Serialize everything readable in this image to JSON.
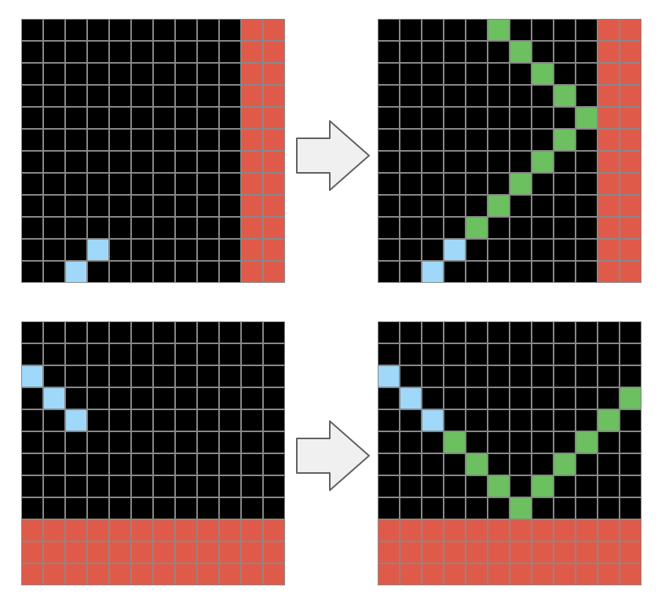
{
  "colors": {
    "background": "#000000",
    "gridline": "#888888",
    "wall": "#e05a4a",
    "start": "#9fd8f8",
    "path": "#6cc060",
    "arrow_fill": "#f0f0f0",
    "arrow_stroke": "#606060"
  },
  "examples": [
    {
      "input": {
        "rows": 12,
        "cols": 12,
        "wall": {
          "side": "right",
          "thickness": 2
        },
        "cells": [
          {
            "r": 10,
            "c": 3,
            "color": "start"
          },
          {
            "r": 11,
            "c": 2,
            "color": "start"
          }
        ]
      },
      "output": {
        "rows": 12,
        "cols": 12,
        "wall": {
          "side": "right",
          "thickness": 2
        },
        "cells": [
          {
            "r": 11,
            "c": 2,
            "color": "start"
          },
          {
            "r": 10,
            "c": 3,
            "color": "start"
          },
          {
            "r": 9,
            "c": 4,
            "color": "path"
          },
          {
            "r": 8,
            "c": 5,
            "color": "path"
          },
          {
            "r": 7,
            "c": 6,
            "color": "path"
          },
          {
            "r": 6,
            "c": 7,
            "color": "path"
          },
          {
            "r": 5,
            "c": 8,
            "color": "path"
          },
          {
            "r": 4,
            "c": 9,
            "color": "path"
          },
          {
            "r": 3,
            "c": 8,
            "color": "path"
          },
          {
            "r": 2,
            "c": 7,
            "color": "path"
          },
          {
            "r": 1,
            "c": 6,
            "color": "path"
          },
          {
            "r": 0,
            "c": 5,
            "color": "path"
          }
        ]
      }
    },
    {
      "input": {
        "rows": 12,
        "cols": 12,
        "wall": {
          "side": "bottom",
          "thickness": 3
        },
        "cells": [
          {
            "r": 2,
            "c": 0,
            "color": "start"
          },
          {
            "r": 3,
            "c": 1,
            "color": "start"
          },
          {
            "r": 4,
            "c": 2,
            "color": "start"
          }
        ]
      },
      "output": {
        "rows": 12,
        "cols": 12,
        "wall": {
          "side": "bottom",
          "thickness": 3
        },
        "cells": [
          {
            "r": 2,
            "c": 0,
            "color": "start"
          },
          {
            "r": 3,
            "c": 1,
            "color": "start"
          },
          {
            "r": 4,
            "c": 2,
            "color": "start"
          },
          {
            "r": 5,
            "c": 3,
            "color": "path"
          },
          {
            "r": 6,
            "c": 4,
            "color": "path"
          },
          {
            "r": 7,
            "c": 5,
            "color": "path"
          },
          {
            "r": 8,
            "c": 6,
            "color": "path"
          },
          {
            "r": 7,
            "c": 7,
            "color": "path"
          },
          {
            "r": 6,
            "c": 8,
            "color": "path"
          },
          {
            "r": 5,
            "c": 9,
            "color": "path"
          },
          {
            "r": 4,
            "c": 10,
            "color": "path"
          },
          {
            "r": 3,
            "c": 11,
            "color": "path"
          }
        ]
      }
    }
  ]
}
